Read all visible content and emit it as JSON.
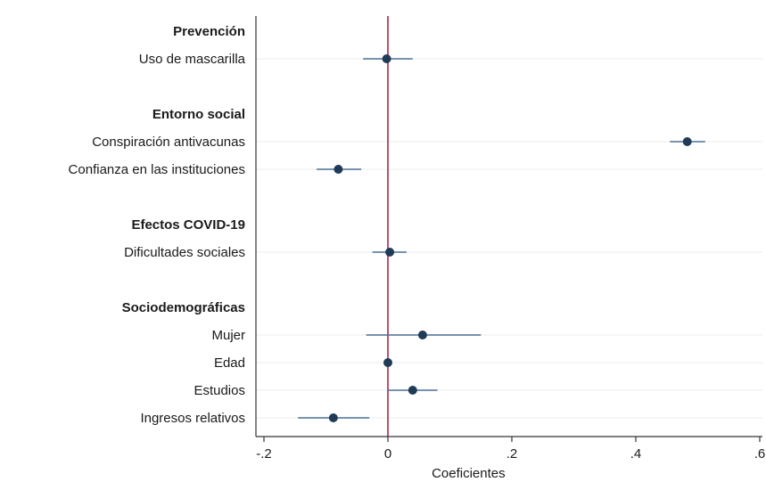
{
  "chart_data": {
    "type": "scatter",
    "subtype": "coefficient-plot",
    "title": "",
    "xlabel": "Coeficientes",
    "ylabel": "",
    "xlim": [
      -0.2,
      0.6
    ],
    "xticks": [
      {
        "value": -0.2,
        "label": "-.2"
      },
      {
        "value": 0,
        "label": "0"
      },
      {
        "value": 0.2,
        "label": ".2"
      },
      {
        "value": 0.4,
        "label": ".4"
      },
      {
        "value": 0.6,
        "label": ".6"
      }
    ],
    "reference_line": 0,
    "grid": true,
    "legend": "none",
    "colors": {
      "point": "#1f3b57",
      "ci": "#4a6f92",
      "reference": "#c0506a",
      "grid": "#ececec",
      "axis": "#333333"
    },
    "rows": [
      {
        "kind": "group",
        "label": "Prevención"
      },
      {
        "kind": "item",
        "label": "Uso de mascarilla",
        "coef": -0.002,
        "lo": -0.04,
        "hi": 0.04
      },
      {
        "kind": "gap"
      },
      {
        "kind": "group",
        "label": "Entorno social"
      },
      {
        "kind": "item",
        "label": "Conspiración antivacunas",
        "coef": 0.483,
        "lo": 0.455,
        "hi": 0.512
      },
      {
        "kind": "item",
        "label": "Confianza en las instituciones",
        "coef": -0.08,
        "lo": -0.115,
        "hi": -0.043
      },
      {
        "kind": "gap"
      },
      {
        "kind": "group",
        "label": "Efectos COVID-19"
      },
      {
        "kind": "item",
        "label": "Dificultades sociales",
        "coef": 0.003,
        "lo": -0.025,
        "hi": 0.03
      },
      {
        "kind": "gap"
      },
      {
        "kind": "group",
        "label": "Sociodemográficas"
      },
      {
        "kind": "item",
        "label": "Mujer",
        "coef": 0.056,
        "lo": -0.035,
        "hi": 0.15
      },
      {
        "kind": "item",
        "label": "Edad",
        "coef": 0.0,
        "lo": -0.003,
        "hi": 0.003
      },
      {
        "kind": "item",
        "label": "Estudios",
        "coef": 0.04,
        "lo": 0.0,
        "hi": 0.08
      },
      {
        "kind": "item",
        "label": "Ingresos relativos",
        "coef": -0.088,
        "lo": -0.145,
        "hi": -0.03
      }
    ]
  }
}
